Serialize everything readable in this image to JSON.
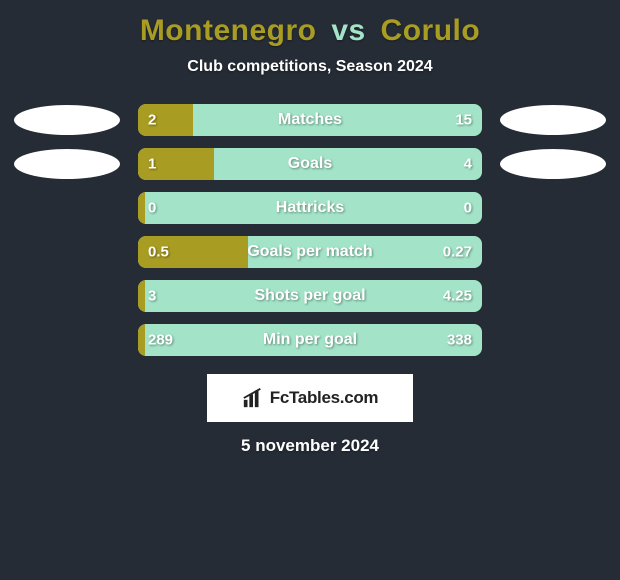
{
  "colors": {
    "card_bg": "#252c35",
    "player1": "#a99c22",
    "player2": "#a3e4c9",
    "title": "#a99c22",
    "vs": "#a3e4c9"
  },
  "title": {
    "player1": "Montenegro",
    "vs": "vs",
    "player2": "Corulo"
  },
  "subtitle": "Club competitions, Season 2024",
  "stats": [
    {
      "label": "Matches",
      "left_val": "2",
      "right_val": "15",
      "left_pct": 16,
      "has_ellipses": true
    },
    {
      "label": "Goals",
      "left_val": "1",
      "right_val": "4",
      "left_pct": 22,
      "has_ellipses": true
    },
    {
      "label": "Hattricks",
      "left_val": "0",
      "right_val": "0",
      "left_pct": 2,
      "has_ellipses": false
    },
    {
      "label": "Goals per match",
      "left_val": "0.5",
      "right_val": "0.27",
      "left_pct": 32,
      "has_ellipses": false
    },
    {
      "label": "Shots per goal",
      "left_val": "3",
      "right_val": "4.25",
      "left_pct": 2,
      "has_ellipses": false
    },
    {
      "label": "Min per goal",
      "left_val": "289",
      "right_val": "338",
      "left_pct": 2,
      "has_ellipses": false
    }
  ],
  "logo_text": "FcTables.com",
  "date": "5 november 2024"
}
